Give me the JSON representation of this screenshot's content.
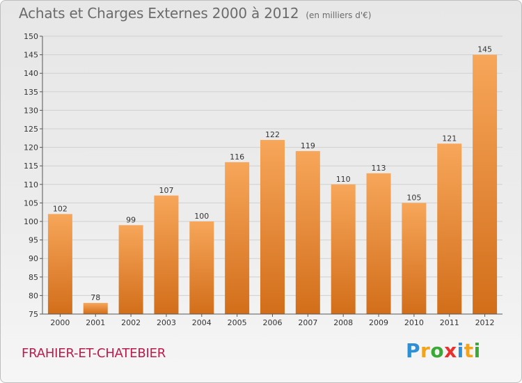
{
  "header": {
    "title": "Achats et Charges Externes 2000 à 2012",
    "unit": "(en milliers d'€)"
  },
  "footer": {
    "commune": "FRAHIER-ET-CHATEBIER",
    "logo_letters": [
      "P",
      "r",
      "o",
      "x",
      "i",
      "t",
      "i"
    ],
    "logo_colors": [
      "#2d8fd6",
      "#f2a31b",
      "#3aa935",
      "#e8312f",
      "#2d8fd6",
      "#f2a31b",
      "#3aa935"
    ]
  },
  "colors": {
    "bar_top": "#f7a65a",
    "bar_bottom": "#d26e1a",
    "grid": "#d0d0d0",
    "axis": "#555555"
  },
  "chart_data": {
    "type": "bar",
    "title": "Achats et Charges Externes 2000 à 2012",
    "subtitle": "(en milliers d'€)",
    "xlabel": "",
    "ylabel": "",
    "categories": [
      "2000",
      "2001",
      "2002",
      "2003",
      "2004",
      "2005",
      "2006",
      "2007",
      "2008",
      "2009",
      "2010",
      "2011",
      "2012"
    ],
    "values": [
      102,
      78,
      99,
      107,
      100,
      116,
      122,
      119,
      110,
      113,
      105,
      121,
      145
    ],
    "ylim": [
      75,
      150
    ],
    "yticks": [
      75,
      80,
      85,
      90,
      95,
      100,
      105,
      110,
      115,
      120,
      125,
      130,
      135,
      140,
      145,
      150
    ],
    "grid": true
  }
}
